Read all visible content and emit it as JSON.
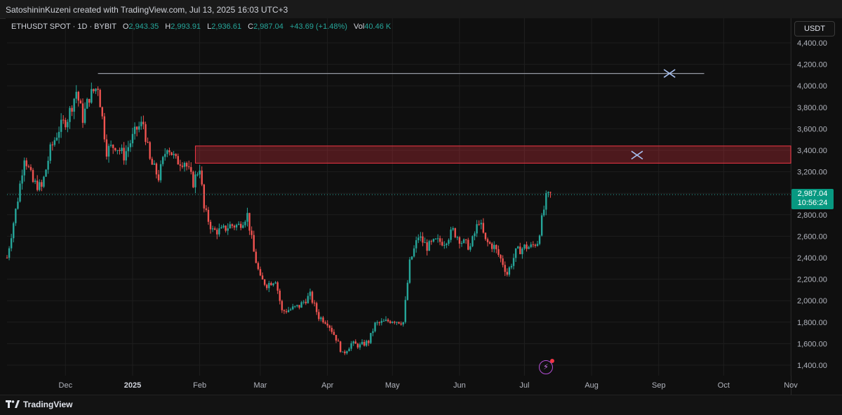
{
  "header": {
    "attribution": "SatoshininKuzeni created with TradingView.com, Jul 13, 2025 16:03 UTC+3"
  },
  "legend": {
    "symbol": "ETHUSDT SPOT · 1D · BYBIT",
    "open_label": "O",
    "open": "2,943.35",
    "high_label": "H",
    "high": "2,993.91",
    "low_label": "L",
    "low": "2,936.61",
    "close_label": "C",
    "close": "2,987.04",
    "change": "+43.69 (+1.48%)",
    "vol_label": "Vol",
    "vol": "40.46 K"
  },
  "currency_button": "USDT",
  "last_price": {
    "price": "2,987.04",
    "countdown": "10:56:24"
  },
  "footer": {
    "brand": "TradingView"
  },
  "colors": {
    "up": "#26a69a",
    "down": "#ef5350",
    "zone": "#f23645",
    "line": "#9598a1",
    "marker": "#a9c1f0"
  },
  "chart_data": {
    "type": "candlestick",
    "title": "",
    "xlabel": "",
    "ylabel": "",
    "ylim": [
      1300,
      4500
    ],
    "y_ticks": [
      "4,400.00",
      "4,200.00",
      "4,000.00",
      "3,800.00",
      "3,600.00",
      "3,400.00",
      "3,200.00",
      "3,000.00",
      "2,800.00",
      "2,600.00",
      "2,400.00",
      "2,200.00",
      "2,000.00",
      "1,800.00",
      "1,600.00",
      "1,400.00"
    ],
    "x_ticks": [
      {
        "label": "Dec",
        "date": "2024-12-01"
      },
      {
        "label": "2025",
        "date": "2025-01-01",
        "bold": true
      },
      {
        "label": "Feb",
        "date": "2025-02-01"
      },
      {
        "label": "Mar",
        "date": "2025-03-01"
      },
      {
        "label": "Apr",
        "date": "2025-04-01"
      },
      {
        "label": "May",
        "date": "2025-05-01"
      },
      {
        "label": "Jun",
        "date": "2025-06-01"
      },
      {
        "label": "Jul",
        "date": "2025-07-01"
      },
      {
        "label": "Aug",
        "date": "2025-08-01"
      },
      {
        "label": "Sep",
        "date": "2025-09-01"
      },
      {
        "label": "Oct",
        "date": "2025-10-01"
      },
      {
        "label": "Nov",
        "date": "2025-11-01"
      }
    ],
    "x_start_date": "2024-11-04",
    "x_end_date": "2025-11-01",
    "close_path": [
      {
        "date": "2024-11-04",
        "close": 2400
      },
      {
        "date": "2024-11-09",
        "close": 2950
      },
      {
        "date": "2024-11-12",
        "close": 3350
      },
      {
        "date": "2024-11-16",
        "close": 3100
      },
      {
        "date": "2024-11-20",
        "close": 3050
      },
      {
        "date": "2024-11-24",
        "close": 3400
      },
      {
        "date": "2024-11-28",
        "close": 3600
      },
      {
        "date": "2024-12-02",
        "close": 3700
      },
      {
        "date": "2024-12-06",
        "close": 3950
      },
      {
        "date": "2024-12-09",
        "close": 3700
      },
      {
        "date": "2024-12-12",
        "close": 3900
      },
      {
        "date": "2024-12-16",
        "close": 4000
      },
      {
        "date": "2024-12-20",
        "close": 3400
      },
      {
        "date": "2024-12-24",
        "close": 3450
      },
      {
        "date": "2024-12-28",
        "close": 3350
      },
      {
        "date": "2025-01-03",
        "close": 3600
      },
      {
        "date": "2025-01-06",
        "close": 3650
      },
      {
        "date": "2025-01-09",
        "close": 3300
      },
      {
        "date": "2025-01-13",
        "close": 3150
      },
      {
        "date": "2025-01-17",
        "close": 3450
      },
      {
        "date": "2025-01-21",
        "close": 3300
      },
      {
        "date": "2025-01-25",
        "close": 3300
      },
      {
        "date": "2025-01-29",
        "close": 3100
      },
      {
        "date": "2025-02-01",
        "close": 3250
      },
      {
        "date": "2025-02-03",
        "close": 2850
      },
      {
        "date": "2025-02-07",
        "close": 2650
      },
      {
        "date": "2025-02-11",
        "close": 2650
      },
      {
        "date": "2025-02-15",
        "close": 2700
      },
      {
        "date": "2025-02-19",
        "close": 2700
      },
      {
        "date": "2025-02-23",
        "close": 2800
      },
      {
        "date": "2025-02-26",
        "close": 2450
      },
      {
        "date": "2025-03-01",
        "close": 2200
      },
      {
        "date": "2025-03-04",
        "close": 2150
      },
      {
        "date": "2025-03-08",
        "close": 2200
      },
      {
        "date": "2025-03-11",
        "close": 1900
      },
      {
        "date": "2025-03-15",
        "close": 1920
      },
      {
        "date": "2025-03-19",
        "close": 1950
      },
      {
        "date": "2025-03-24",
        "close": 2050
      },
      {
        "date": "2025-03-28",
        "close": 1850
      },
      {
        "date": "2025-04-01",
        "close": 1800
      },
      {
        "date": "2025-04-05",
        "close": 1650
      },
      {
        "date": "2025-04-08",
        "close": 1500
      },
      {
        "date": "2025-04-12",
        "close": 1600
      },
      {
        "date": "2025-04-16",
        "close": 1580
      },
      {
        "date": "2025-04-20",
        "close": 1620
      },
      {
        "date": "2025-04-23",
        "close": 1780
      },
      {
        "date": "2025-04-27",
        "close": 1800
      },
      {
        "date": "2025-05-01",
        "close": 1820
      },
      {
        "date": "2025-05-06",
        "close": 1800
      },
      {
        "date": "2025-05-09",
        "close": 2350
      },
      {
        "date": "2025-05-13",
        "close": 2600
      },
      {
        "date": "2025-05-17",
        "close": 2500
      },
      {
        "date": "2025-05-21",
        "close": 2550
      },
      {
        "date": "2025-05-25",
        "close": 2550
      },
      {
        "date": "2025-05-29",
        "close": 2650
      },
      {
        "date": "2025-06-02",
        "close": 2550
      },
      {
        "date": "2025-06-06",
        "close": 2500
      },
      {
        "date": "2025-06-10",
        "close": 2750
      },
      {
        "date": "2025-06-13",
        "close": 2550
      },
      {
        "date": "2025-06-17",
        "close": 2500
      },
      {
        "date": "2025-06-21",
        "close": 2350
      },
      {
        "date": "2025-06-23",
        "close": 2250
      },
      {
        "date": "2025-06-27",
        "close": 2450
      },
      {
        "date": "2025-07-01",
        "close": 2500
      },
      {
        "date": "2025-07-04",
        "close": 2500
      },
      {
        "date": "2025-07-07",
        "close": 2550
      },
      {
        "date": "2025-07-09",
        "close": 2750
      },
      {
        "date": "2025-07-11",
        "close": 2950
      },
      {
        "date": "2025-07-13",
        "close": 2987
      }
    ],
    "resistance_line": {
      "start": "2024-12-16",
      "end": "2025-09-22",
      "price": 4115
    },
    "resistance_zone": {
      "start": "2025-01-30",
      "end": "2025-11-01",
      "top": 3440,
      "bottom": 3280
    },
    "markers": [
      {
        "date": "2025-09-06",
        "price": 4115
      },
      {
        "date": "2025-08-22",
        "price": 3355
      }
    ],
    "last_price": 2987.04
  }
}
